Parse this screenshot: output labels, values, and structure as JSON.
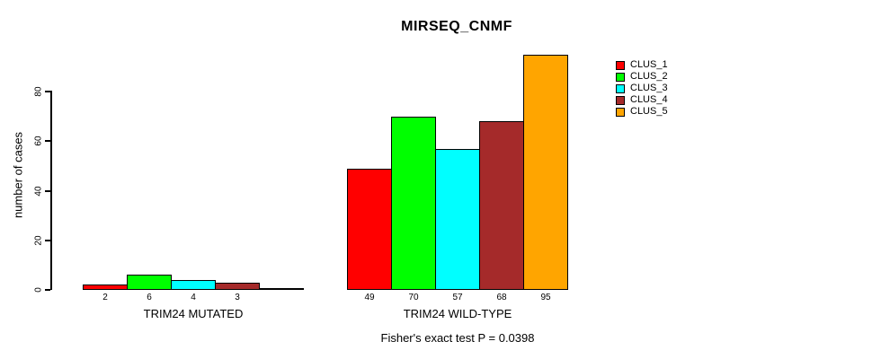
{
  "title": "MIRSEQ_CNMF",
  "chart_data": {
    "type": "bar",
    "title": "MIRSEQ_CNMF",
    "ylabel": "number of cases",
    "xlabel": "",
    "ylim": [
      0,
      80
    ],
    "yticks": [
      0,
      20,
      40,
      60,
      80
    ],
    "grid": false,
    "legend_position": "top-right",
    "legend": [
      "CLUS_1",
      "CLUS_2",
      "CLUS_3",
      "CLUS_4",
      "CLUS_5"
    ],
    "series_colors": [
      "#ff0000",
      "#00ff00",
      "#00ffff",
      "#a52a2a",
      "#ffa500"
    ],
    "groups": [
      {
        "label": "TRIM24 MUTATED",
        "values": [
          2,
          6,
          4,
          3,
          0
        ],
        "bar_labels": [
          "2",
          "6",
          "4",
          "3",
          ""
        ]
      },
      {
        "label": "TRIM24 WILD-TYPE",
        "values": [
          49,
          70,
          57,
          68,
          95
        ],
        "bar_labels": [
          "49",
          "70",
          "57",
          "68",
          "95"
        ]
      }
    ],
    "annotation": "Fisher's exact test P = 0.0398"
  }
}
